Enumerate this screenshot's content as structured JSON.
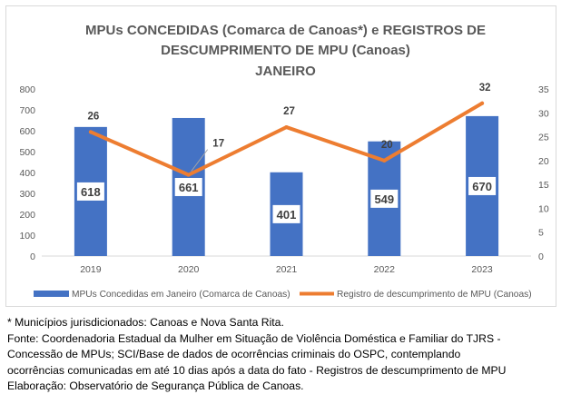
{
  "chart_data": {
    "type": "bar",
    "title_lines": [
      "MPUs CONCEDIDAS (Comarca de Canoas*) e REGISTROS DE",
      "DESCUMPRIMENTO  DE MPU (Canoas)",
      "JANEIRO"
    ],
    "categories": [
      "2019",
      "2020",
      "2021",
      "2022",
      "2023"
    ],
    "series": [
      {
        "name": "MPUs Concedidas em Janeiro (Comarca de Canoas)",
        "type": "bar",
        "axis": "left",
        "values": [
          618,
          661,
          401,
          549,
          670
        ],
        "color": "#4472c4"
      },
      {
        "name": "Registro de descumprimento de MPU (Canoas)",
        "type": "line",
        "axis": "right",
        "values": [
          26,
          17,
          27,
          20,
          32
        ],
        "color": "#ed7d31"
      }
    ],
    "left_axis": {
      "min": 0,
      "max": 800,
      "step": 100,
      "ticks": [
        "0",
        "100",
        "200",
        "300",
        "400",
        "500",
        "600",
        "700",
        "800"
      ]
    },
    "right_axis": {
      "min": 0,
      "max": 35,
      "step": 5,
      "ticks": [
        "0",
        "5",
        "10",
        "15",
        "20",
        "25",
        "30",
        "35"
      ]
    },
    "grid": false,
    "legend_position": "bottom"
  },
  "notes": [
    "* Municípios jurisdicionados: Canoas e Nova Santa Rita.",
    "Fonte: Coordenadoria Estadual da Mulher em Situação de Violência Doméstica e Familiar do TJRS  -",
    "Concessão de MPUs; SCI/Base de dados de ocorrências criminais do OSPC, contemplando",
    "ocorrências comunicadas em até 10 dias após a data do fato - Registros de descumprimento de MPU",
    "Elaboração: Observatório de Segurança Pública de Canoas."
  ]
}
